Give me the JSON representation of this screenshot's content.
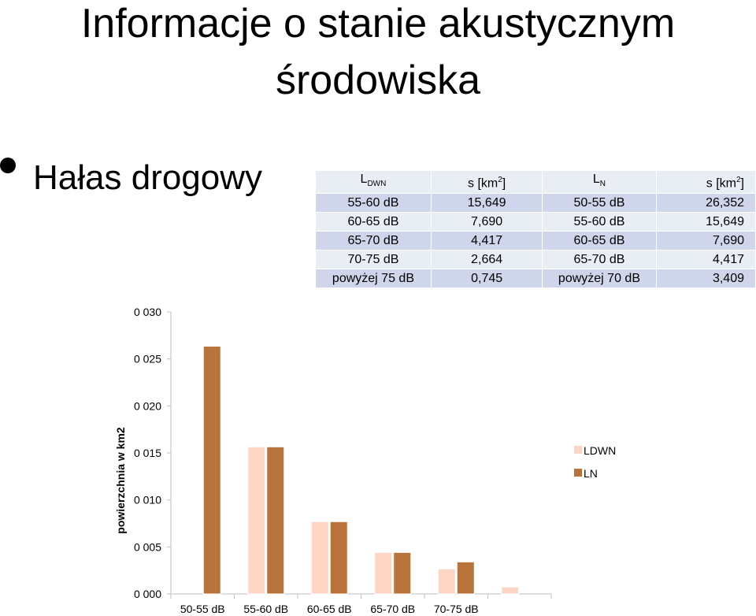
{
  "slide": {
    "title_line1": "Informacje o stanie akustycznym",
    "title_line2": "środowiska",
    "bullet": "Hałas drogowy"
  },
  "table": {
    "headers": {
      "ldwn_main": "L",
      "ldwn_sub": "DWN",
      "s1_main": "s [km",
      "s1_sup": "2",
      "s1_end": "]",
      "ln_main": "L",
      "ln_sub": "N",
      "s2_main": "s [km",
      "s2_sup": "2",
      "s2_end": "]"
    },
    "rows": [
      [
        "55-60 dB",
        "15,649",
        "50-55 dB",
        "26,352"
      ],
      [
        "60-65 dB",
        "7,690",
        "55-60 dB",
        "15,649"
      ],
      [
        "65-70 dB",
        "4,417",
        "60-65 dB",
        "7,690"
      ],
      [
        "70-75 dB",
        "2,664",
        "65-70 dB",
        "4,417"
      ],
      [
        "powyżej 75 dB",
        "0,745",
        "powyżej 70 dB",
        "3,409"
      ]
    ]
  },
  "chart_data": {
    "type": "bar",
    "ylabel": "powierzchnia w km2",
    "xlabel": "",
    "yticks": [
      "0 000",
      "0 005",
      "0 010",
      "0 015",
      "0 020",
      "0 025",
      "0 030"
    ],
    "ylim": [
      0,
      30
    ],
    "categories": [
      "50-55 dB",
      "55-60 dB",
      "60-65 dB",
      "65-70 dB",
      "70-75 dB",
      ""
    ],
    "series": [
      {
        "name": "LDWN",
        "color": "#fcd5c4",
        "values": [
          0,
          15.649,
          7.69,
          4.417,
          2.664,
          0.745
        ]
      },
      {
        "name": "LN",
        "color": "#b8733a",
        "values": [
          26.352,
          15.649,
          7.69,
          4.417,
          3.409,
          0
        ]
      }
    ],
    "grid": false,
    "legend": "right"
  }
}
